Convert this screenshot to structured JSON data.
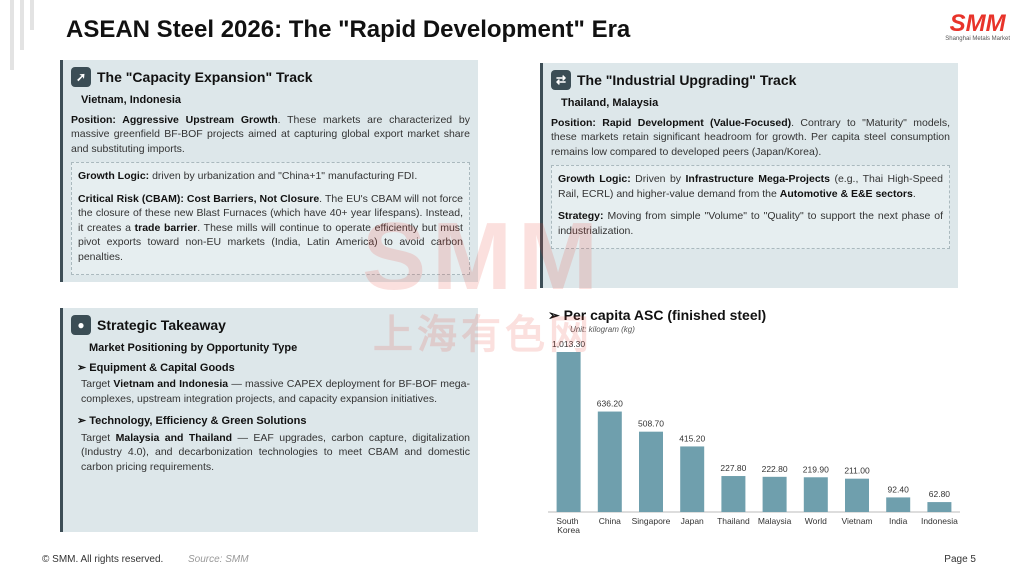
{
  "header": {
    "title": "ASEAN Steel 2026: The \"Rapid Development\" Era",
    "logo": "SMM",
    "logo_sub": "Shanghai Metals Market"
  },
  "watermark": {
    "text": "SMM",
    "subtext": "上海有色网"
  },
  "cards": [
    {
      "title": "The \"Capacity Expansion\" Track",
      "subtitle": "Vietnam, Indonesia",
      "intro": [
        {
          "text": "Position: Aggressive Upstream Growth",
          "bold": true
        },
        {
          "text": ". These markets are characterized by massive greenfield BF-BOF projects aimed at capturing global export market share and substituting imports.",
          "bold": false
        }
      ],
      "box": [
        [
          {
            "text": "Growth Logic:",
            "bold": true
          },
          {
            "text": " driven by urbanization and \"China+1\" manufacturing FDI.",
            "bold": false
          }
        ],
        [
          {
            "text": "Critical Risk (CBAM): Cost Barriers, Not Closure",
            "bold": true
          },
          {
            "text": ". The EU's CBAM will not force the closure of these new Blast Furnaces (which have 40+ year lifespans). Instead, it creates a ",
            "bold": false
          },
          {
            "text": "trade barrier",
            "bold": true
          },
          {
            "text": ". These mills will continue to operate efficiently but must pivot exports toward non-EU markets (India, Latin America) to avoid carbon penalties.",
            "bold": false
          }
        ]
      ]
    },
    {
      "title": "The \"Industrial Upgrading\" Track",
      "subtitle": "Thailand, Malaysia",
      "intro": [
        {
          "text": "Position: Rapid Development (Value-Focused)",
          "bold": true
        },
        {
          "text": ". Contrary to \"Maturity\" models, these markets retain significant headroom for growth. Per capita steel consumption remains low compared to developed peers (Japan/Korea).",
          "bold": false
        }
      ],
      "box": [
        [
          {
            "text": "Growth Logic:",
            "bold": true
          },
          {
            "text": " Driven by ",
            "bold": false
          },
          {
            "text": "Infrastructure Mega-Projects",
            "bold": true
          },
          {
            "text": " (e.g., Thai High-Speed Rail, ECRL) and higher-value demand from the ",
            "bold": false
          },
          {
            "text": "Automotive & E&E sectors",
            "bold": true
          },
          {
            "text": ".",
            "bold": false
          }
        ],
        [
          {
            "text": "Strategy:",
            "bold": true
          },
          {
            "text": " Moving from simple \"Volume\" to \"Quality\" to support the next phase of industrialization.",
            "bold": false
          }
        ]
      ]
    }
  ],
  "takeaway": {
    "title": "Strategic Takeaway",
    "subtitle": "Market Positioning by Opportunity Type",
    "items": [
      {
        "heading": "Equipment & Capital Goods",
        "body": [
          {
            "text": "Target ",
            "bold": false
          },
          {
            "text": "Vietnam and Indonesia",
            "bold": true
          },
          {
            "text": " — massive CAPEX deployment for BF-BOF mega-complexes, upstream integration projects, and capacity expansion initiatives.",
            "bold": false
          }
        ]
      },
      {
        "heading": "Technology, Efficiency & Green Solutions",
        "body": [
          {
            "text": "Target ",
            "bold": false
          },
          {
            "text": "Malaysia and Thailand",
            "bold": true
          },
          {
            "text": " — EAF upgrades, carbon capture, digitalization (Industry 4.0), and decarbonization technologies to meet CBAM and domestic carbon pricing requirements.",
            "bold": false
          }
        ]
      }
    ]
  },
  "chart_data": {
    "type": "bar",
    "title": "Per capita ASC (finished steel)",
    "subtitle": "Unit: kilogram (kg)",
    "color": "#6f9fad",
    "categories": [
      "South Korea",
      "China",
      "Singapore",
      "Japan",
      "Thailand",
      "Malaysia",
      "World",
      "Vietnam",
      "India",
      "Indonesia"
    ],
    "values": [
      1013.3,
      636.2,
      508.7,
      415.2,
      227.8,
      222.8,
      219.9,
      211.0,
      92.4,
      62.8
    ],
    "value_labels": [
      "1,013.30",
      "636.20",
      "508.70",
      "415.20",
      "227.80",
      "222.80",
      "219.90",
      "211.00",
      "92.40",
      "62.80"
    ]
  },
  "footer": {
    "copyright": "© SMM. All rights reserved.",
    "source": "Source: SMM",
    "page": "Page 5"
  }
}
